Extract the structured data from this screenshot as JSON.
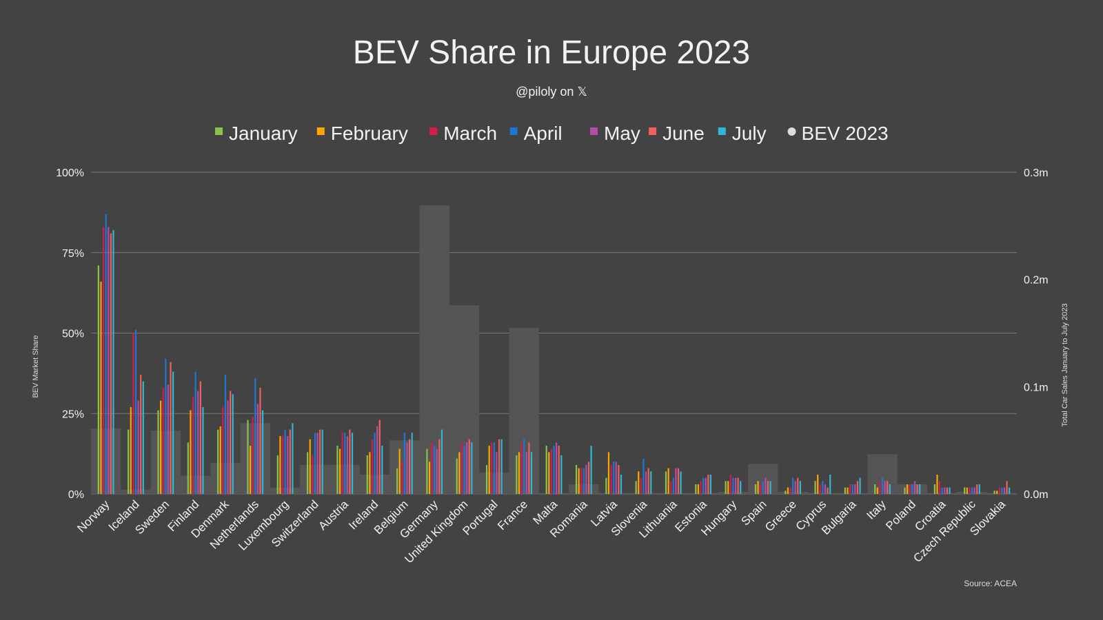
{
  "chart_data": {
    "type": "bar",
    "title": "BEV Share in Europe 2023",
    "subtitle": "@piloly on 𝕏",
    "ylabel": "BEV Market Share",
    "y2label": "Total Car Sales January to July 2023",
    "source": "Source: ACEA",
    "ylim": [
      0,
      100
    ],
    "yticks": [
      "0%",
      "25%",
      "50%",
      "75%",
      "100%"
    ],
    "y2lim": [
      0,
      0.3
    ],
    "y2ticks": [
      "0.0m",
      "0.1m",
      "0.2m",
      "0.3m"
    ],
    "grid": true,
    "legend_position": "top",
    "categories": [
      "Norway",
      "Iceland",
      "Sweden",
      "Finland",
      "Denmark",
      "Netherlands",
      "Luxembourg",
      "Switzerland",
      "Austria",
      "Ireland",
      "Belgium",
      "Germany",
      "United Kingdom",
      "Portugal",
      "France",
      "Malta",
      "Romania",
      "Latvia",
      "Slovenia",
      "Lithuania",
      "Estonia",
      "Hungary",
      "Spain",
      "Greece",
      "Cyprus",
      "Bulgaria",
      "Italy",
      "Poland",
      "Croatia",
      "Czech Republic",
      "Slovakia"
    ],
    "series": [
      {
        "name": "January",
        "color": "#8bc34a",
        "values": [
          71,
          20,
          26,
          16,
          20,
          23,
          12,
          13,
          15,
          12,
          8,
          14,
          11,
          9,
          12,
          15,
          9,
          5,
          4,
          7,
          3,
          4,
          3,
          1,
          4,
          2,
          3,
          2,
          3,
          2,
          1
        ]
      },
      {
        "name": "February",
        "color": "#ffa500",
        "values": [
          66,
          27,
          29,
          26,
          21,
          15,
          18,
          17,
          14,
          13,
          14,
          10,
          13,
          15,
          13,
          13,
          8,
          13,
          7,
          8,
          3,
          4,
          4,
          2,
          6,
          2,
          2,
          3,
          6,
          2,
          1
        ]
      },
      {
        "name": "March",
        "color": "#d81b4a",
        "values": [
          83,
          50,
          33,
          30,
          27,
          24,
          18,
          12,
          19,
          17,
          10,
          16,
          16,
          16,
          16,
          14,
          8,
          9,
          5,
          4,
          4,
          6,
          3,
          2,
          3,
          3,
          4,
          3,
          4,
          2,
          2
        ]
      },
      {
        "name": "April",
        "color": "#1f77d4",
        "values": [
          87,
          51,
          42,
          38,
          37,
          36,
          20,
          19,
          19,
          19,
          19,
          15,
          15,
          16,
          17,
          15,
          8,
          10,
          11,
          5,
          5,
          5,
          4,
          5,
          4,
          3,
          5,
          3,
          2,
          2,
          2
        ]
      },
      {
        "name": "May",
        "color": "#b34ea8",
        "values": [
          83,
          29,
          34,
          32,
          29,
          28,
          18,
          19,
          18,
          21,
          16,
          14,
          16,
          13,
          13,
          16,
          9,
          10,
          7,
          8,
          5,
          5,
          5,
          4,
          3,
          3,
          4,
          4,
          2,
          2,
          2
        ]
      },
      {
        "name": "June",
        "color": "#f06060",
        "values": [
          81,
          37,
          41,
          35,
          32,
          33,
          20,
          20,
          20,
          23,
          17,
          17,
          17,
          17,
          16,
          15,
          10,
          9,
          8,
          8,
          6,
          5,
          4,
          5,
          2,
          4,
          4,
          3,
          2,
          3,
          4
        ]
      },
      {
        "name": "July",
        "color": "#2fb8d6",
        "values": [
          82,
          35,
          38,
          27,
          31,
          26,
          22,
          20,
          19,
          15,
          19,
          20,
          16,
          17,
          13,
          12,
          15,
          6,
          7,
          7,
          6,
          4,
          4,
          4,
          6,
          5,
          3,
          3,
          2,
          3,
          2
        ]
      }
    ],
    "bev_2023": {
      "name": "BEV 2023",
      "color": "#555555",
      "unit": "m",
      "values": [
        0.061,
        0.004,
        0.059,
        0.017,
        0.029,
        0.066,
        0.006,
        0.027,
        0.027,
        0.018,
        0.05,
        0.269,
        0.176,
        0.02,
        0.155,
        0.001,
        0.009,
        0.001,
        0.001,
        0.001,
        0.001,
        0.002,
        0.028,
        0.002,
        0.001,
        0.001,
        0.037,
        0.009,
        0.001,
        0.002,
        0.001
      ]
    }
  }
}
